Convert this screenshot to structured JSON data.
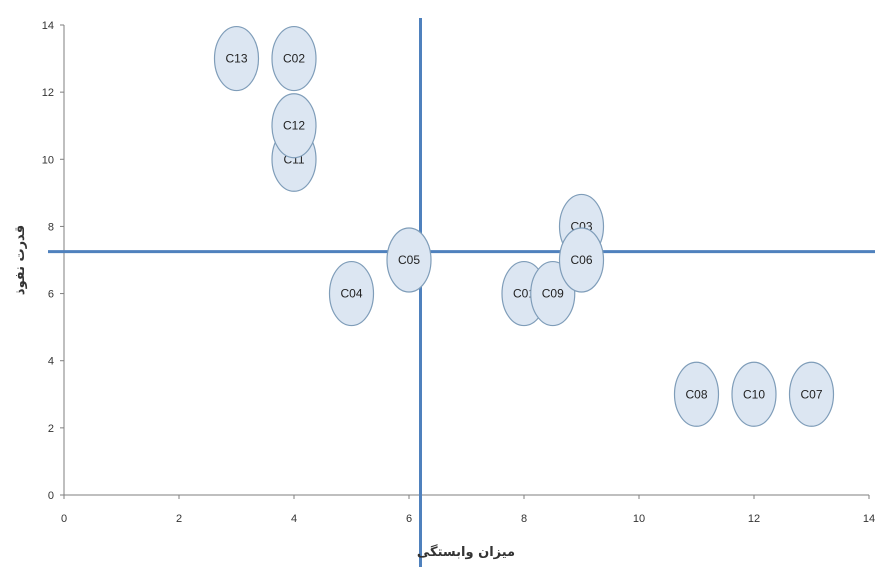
{
  "chart_data": {
    "type": "scatter",
    "xlabel": "میزان وابستگی",
    "ylabel": "قدرت نفوذ",
    "xlim": [
      0,
      14
    ],
    "ylim": [
      0,
      14
    ],
    "xticks": [
      "0",
      "2",
      "4",
      "6",
      "8",
      "10",
      "12",
      "14"
    ],
    "yticks": [
      "0",
      "2",
      "4",
      "6",
      "8",
      "10",
      "12",
      "14"
    ],
    "grid": false,
    "points": [
      {
        "label": "C13",
        "x": 3,
        "y": 13
      },
      {
        "label": "C02",
        "x": 4,
        "y": 13
      },
      {
        "label": "C11",
        "x": 4,
        "y": 10
      },
      {
        "label": "C12",
        "x": 4,
        "y": 11
      },
      {
        "label": "C04",
        "x": 5,
        "y": 6
      },
      {
        "label": "C05",
        "x": 6,
        "y": 7
      },
      {
        "label": "C01",
        "x": 8,
        "y": 6
      },
      {
        "label": "C09",
        "x": 8.5,
        "y": 6
      },
      {
        "label": "C03",
        "x": 9,
        "y": 8
      },
      {
        "label": "C06",
        "x": 9,
        "y": 7
      },
      {
        "label": "C08",
        "x": 11,
        "y": 3
      },
      {
        "label": "C10",
        "x": 12,
        "y": 3
      },
      {
        "label": "C07",
        "x": 13,
        "y": 3
      }
    ],
    "reference_lines": {
      "x": 6.2,
      "y": 7.25
    },
    "colors": {
      "bubble_fill": "#dce6f2",
      "bubble_stroke": "#7f9db9",
      "reference_line": "#4f81bd",
      "axis": "#7f7f7f"
    }
  }
}
